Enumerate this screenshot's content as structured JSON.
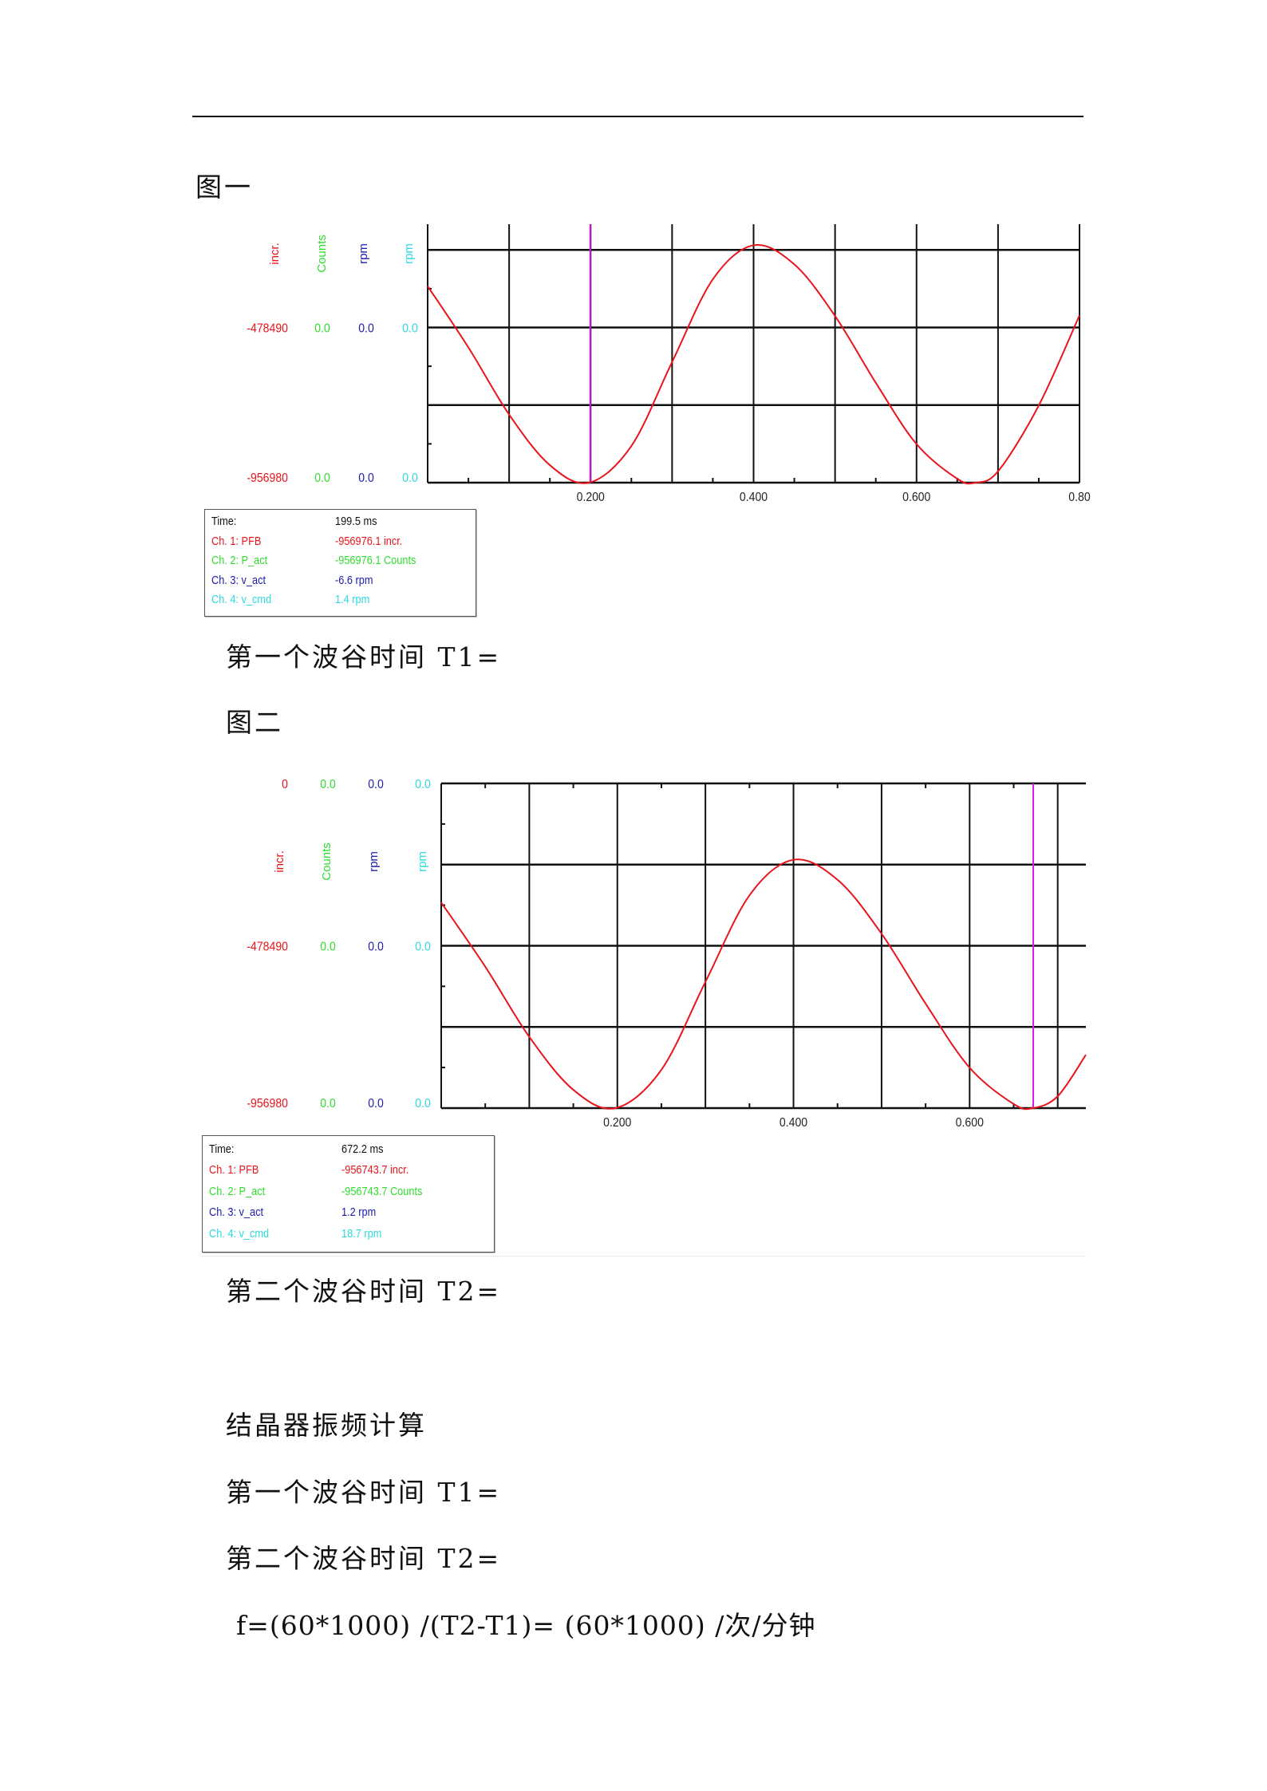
{
  "doc": {
    "fig1_caption": "图一",
    "fig1_question": "第一个波谷时间 T1=",
    "fig2_caption": "图二",
    "fig2_question": "第二个波谷时间 T2=",
    "calc_title": "结晶器振频计算",
    "calc_t1": "第一个波谷时间 T1=",
    "calc_t2": "第二个波谷时间 T2=",
    "formula": "f=(60*1000) /(T2-T1)= (60*1000) /次/分钟"
  },
  "colors": {
    "ch1": "#e8141c",
    "ch2": "#2fdc2f",
    "ch3": "#1c1ca8",
    "ch4": "#2ed8e0",
    "cursor": "#d61ee0",
    "grid": "#000000"
  },
  "chart_data": [
    {
      "type": "line",
      "xlim": [
        0,
        0.8
      ],
      "ylim": [
        -956980,
        -160000
      ],
      "x_tick_labels": [
        "0.200",
        "0.400",
        "0.600",
        "0.80"
      ],
      "x_tick_values": [
        0.2,
        0.4,
        0.6,
        0.8
      ],
      "units": [
        "incr.",
        "Counts",
        "rpm",
        "rpm"
      ],
      "y_labels": [
        {
          "value": -478490,
          "texts": [
            "-478490",
            "0.0",
            "0.0",
            "0.0"
          ]
        },
        {
          "value": -956980,
          "texts": [
            "-956980",
            "0.0",
            "0.0",
            "0.0"
          ]
        }
      ],
      "grid_y": [
        -239245,
        -478490,
        -717735,
        -956980
      ],
      "cursor_x": 0.1995,
      "series": [
        {
          "x": [
            0,
            0.05,
            0.1,
            0.15,
            0.198,
            0.25,
            0.3,
            0.35,
            0.4,
            0.45,
            0.5,
            0.55,
            0.6,
            0.65,
            0.672,
            0.7,
            0.75,
            0.8
          ],
          "y": [
            -351000,
            -540000,
            -747000,
            -903000,
            -956980,
            -844000,
            -585000,
            -330000,
            -225000,
            -284000,
            -443000,
            -649000,
            -838000,
            -945000,
            -956980,
            -922000,
            -719000,
            -441000
          ]
        }
      ],
      "readout": {
        "time_label": "Time:",
        "time_value": "199.5 ms",
        "rows": [
          {
            "label": "Ch. 1: PFB",
            "value": "-956976.1 incr."
          },
          {
            "label": "Ch. 2: P_act",
            "value": "-956976.1 Counts"
          },
          {
            "label": "Ch. 3: v_act",
            "value": "-6.6 rpm"
          },
          {
            "label": "Ch. 4: v_cmd",
            "value": "1.4 rpm"
          }
        ]
      }
    },
    {
      "type": "line",
      "xlim": [
        0,
        0.732
      ],
      "ylim": [
        -956980,
        0
      ],
      "x_tick_labels": [
        "0.200",
        "0.400",
        "0.600"
      ],
      "x_tick_values": [
        0.2,
        0.4,
        0.6
      ],
      "units": [
        "incr.",
        "Counts",
        "rpm",
        "rpm"
      ],
      "y_labels": [
        {
          "value": 0,
          "texts": [
            "0",
            "0.0",
            "0.0",
            "0.0"
          ]
        },
        {
          "value": -478490,
          "texts": [
            "-478490",
            "0.0",
            "0.0",
            "0.0"
          ]
        },
        {
          "value": -956980,
          "texts": [
            "-956980",
            "0.0",
            "0.0",
            "0.0"
          ]
        }
      ],
      "grid_y": [
        0,
        -239245,
        -478490,
        -717735,
        -956980
      ],
      "cursor_x": 0.6722,
      "series": [
        {
          "x": [
            0,
            0.05,
            0.1,
            0.15,
            0.198,
            0.25,
            0.3,
            0.35,
            0.4,
            0.45,
            0.5,
            0.55,
            0.6,
            0.65,
            0.672,
            0.7,
            0.732
          ],
          "y": [
            -351000,
            -540000,
            -747000,
            -903000,
            -956980,
            -844000,
            -585000,
            -330000,
            -225000,
            -284000,
            -443000,
            -649000,
            -838000,
            -945000,
            -956980,
            -922000,
            -800000
          ]
        }
      ],
      "readout": {
        "time_label": "Time:",
        "time_value": "672.2 ms",
        "rows": [
          {
            "label": "Ch. 1: PFB",
            "value": "-956743.7 incr."
          },
          {
            "label": "Ch. 2: P_act",
            "value": "-956743.7 Counts"
          },
          {
            "label": "Ch. 3: v_act",
            "value": "1.2 rpm"
          },
          {
            "label": "Ch. 4: v_cmd",
            "value": "18.7 rpm"
          }
        ]
      }
    }
  ]
}
